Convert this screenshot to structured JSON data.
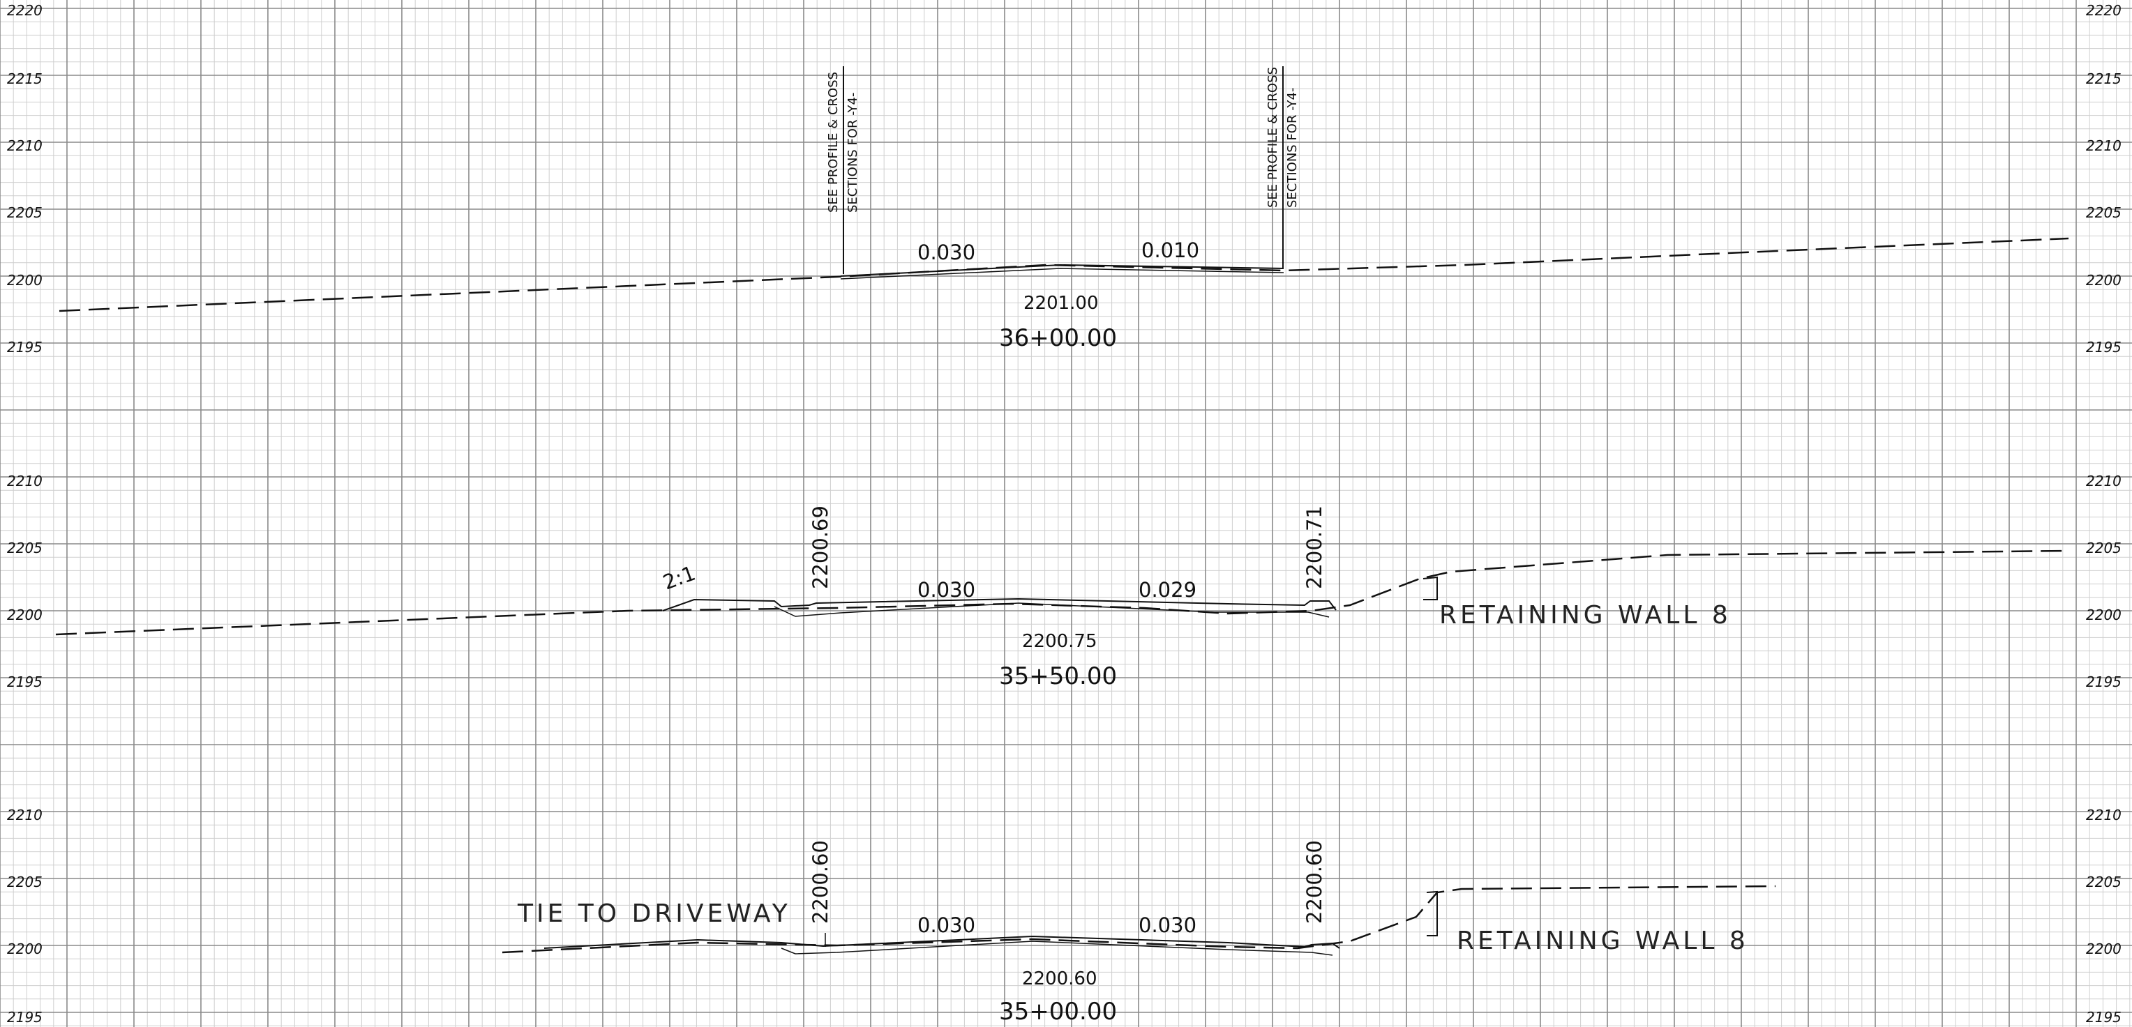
{
  "colors": {
    "grid_minor": "#cfcfcf",
    "grid_major": "#8a8a8a",
    "ink": "#111111"
  },
  "sections": [
    {
      "station": "36+00.00",
      "center_elevation": "2201.00",
      "slope_left": "0.030",
      "slope_right": "0.010",
      "note_left": [
        "SEE PROFILE & CROSS",
        "SECTIONS FOR -Y4-"
      ],
      "note_right": [
        "SEE PROFILE & CROSS",
        "SECTIONS FOR -Y4-"
      ],
      "elevations": [
        "2220",
        "2215",
        "2210",
        "2205",
        "2200",
        "2195"
      ]
    },
    {
      "station": "35+50.00",
      "center_elevation": "2200.75",
      "slope_left": "0.030",
      "slope_right": "0.029",
      "side_slope": "2:1",
      "edge_left": "2200.69",
      "edge_right": "2200.71",
      "wall_label": "RETAINING WALL 8",
      "elevations": [
        "2210",
        "2205",
        "2200",
        "2195"
      ]
    },
    {
      "station": "35+00.00",
      "center_elevation": "2200.60",
      "slope_left": "0.030",
      "slope_right": "0.030",
      "edge_left": "2200.60",
      "edge_right": "2200.60",
      "driveway_label": "TIE TO DRIVEWAY",
      "wall_label": "RETAINING WALL 8",
      "elevations": [
        "2210",
        "2205",
        "2200",
        "2195"
      ]
    }
  ]
}
